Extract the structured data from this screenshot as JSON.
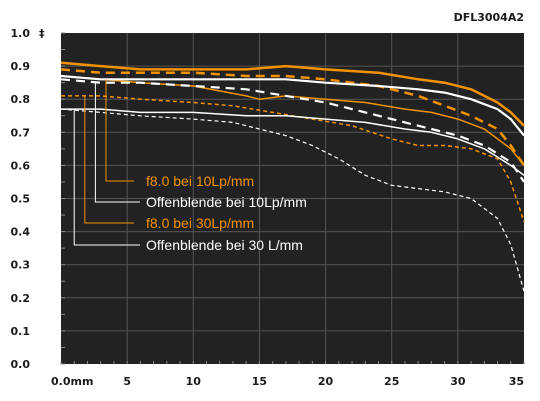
{
  "chart_code": "DFL3004A2",
  "chart_data": {
    "type": "line",
    "title": "",
    "xlabel": "",
    "ylabel": "",
    "xlim": [
      0,
      35
    ],
    "ylim": [
      0,
      1.0
    ],
    "x_ticks": [
      0,
      5,
      10,
      15,
      20,
      25,
      30,
      35
    ],
    "x_tick_labels": [
      "0.0mm",
      "5",
      "10",
      "15",
      "20",
      "25",
      "30",
      "35"
    ],
    "y_ticks": [
      0.0,
      0.1,
      0.2,
      0.3,
      0.4,
      0.5,
      0.6,
      0.7,
      0.8,
      0.9,
      1.0
    ],
    "y_tick_labels": [
      "0.0",
      "0.1",
      "0.2",
      "0.3",
      "0.4",
      "0.5",
      "0.6",
      "0.7",
      "0.8",
      "0.9",
      "1.0"
    ],
    "grid": true,
    "background": "#222222",
    "colors": {
      "orange": "#f39200",
      "white": "#ffffff",
      "grid": "#555555"
    },
    "legend": [
      {
        "label": "f8.0 bei 10Lp/mm",
        "color": "#f39200",
        "anchor_x": 3.4,
        "anchor_y": 0.86
      },
      {
        "label": "Offenblende bei 10Lp/mm",
        "color": "#ffffff",
        "anchor_x": 2.6,
        "anchor_y": 0.85
      },
      {
        "label": "f8.0 bei 30Lp/mm",
        "color": "#f39200",
        "anchor_x": 1.8,
        "anchor_y": 0.81
      },
      {
        "label": "Offenblende bei 30 L/mm",
        "color": "#ffffff",
        "anchor_x": 1.0,
        "anchor_y": 0.77
      }
    ],
    "series": [
      {
        "color": "#f39200",
        "style": "solid",
        "width": 2.5,
        "x": [
          0,
          3,
          6,
          10,
          14,
          17,
          20,
          24,
          27,
          29,
          31,
          33,
          34,
          35
        ],
        "y": [
          0.91,
          0.9,
          0.89,
          0.89,
          0.89,
          0.9,
          0.89,
          0.88,
          0.86,
          0.85,
          0.83,
          0.79,
          0.76,
          0.72
        ]
      },
      {
        "color": "#f39200",
        "style": "dashed",
        "width": 2.5,
        "x": [
          0,
          3,
          6,
          10,
          14,
          17,
          20,
          24,
          27,
          29,
          31,
          33,
          34,
          35
        ],
        "y": [
          0.89,
          0.88,
          0.88,
          0.88,
          0.87,
          0.87,
          0.86,
          0.84,
          0.81,
          0.78,
          0.75,
          0.71,
          0.66,
          0.6
        ]
      },
      {
        "color": "#f39200",
        "style": "solid",
        "width": 1.5,
        "x": [
          0,
          3,
          6,
          10,
          14,
          15,
          17,
          20,
          23,
          26,
          28,
          30,
          32,
          34,
          35
        ],
        "y": [
          0.87,
          0.86,
          0.85,
          0.84,
          0.81,
          0.8,
          0.81,
          0.8,
          0.79,
          0.77,
          0.76,
          0.74,
          0.71,
          0.65,
          0.6
        ]
      },
      {
        "color": "#f39200",
        "style": "dashed",
        "width": 1.5,
        "x": [
          0,
          3,
          6,
          10,
          13,
          16,
          19,
          22,
          25,
          27,
          29,
          31,
          33,
          34,
          35
        ],
        "y": [
          0.81,
          0.81,
          0.8,
          0.79,
          0.78,
          0.76,
          0.74,
          0.72,
          0.68,
          0.66,
          0.66,
          0.65,
          0.62,
          0.55,
          0.43
        ]
      },
      {
        "color": "#ffffff",
        "style": "solid",
        "width": 2.2,
        "x": [
          0,
          3,
          6,
          10,
          14,
          17,
          20,
          24,
          27,
          29,
          31,
          33,
          34,
          35
        ],
        "y": [
          0.87,
          0.86,
          0.86,
          0.86,
          0.86,
          0.86,
          0.85,
          0.84,
          0.83,
          0.82,
          0.8,
          0.77,
          0.74,
          0.69
        ]
      },
      {
        "color": "#ffffff",
        "style": "dashed",
        "width": 2.2,
        "x": [
          0,
          3,
          6,
          10,
          14,
          17,
          20,
          23,
          26,
          28,
          30,
          32,
          34,
          35
        ],
        "y": [
          0.86,
          0.85,
          0.85,
          0.84,
          0.83,
          0.81,
          0.79,
          0.76,
          0.73,
          0.71,
          0.69,
          0.66,
          0.61,
          0.55
        ]
      },
      {
        "color": "#ffffff",
        "style": "solid",
        "width": 1.5,
        "x": [
          0,
          3,
          6,
          10,
          14,
          17,
          20,
          23,
          26,
          28,
          30,
          32,
          34,
          35
        ],
        "y": [
          0.77,
          0.77,
          0.76,
          0.76,
          0.75,
          0.75,
          0.74,
          0.73,
          0.71,
          0.7,
          0.68,
          0.65,
          0.6,
          0.57
        ]
      },
      {
        "color": "#ffffff",
        "style": "dashed",
        "width": 1.2,
        "x": [
          0,
          3,
          6,
          10,
          13,
          15,
          17,
          19,
          21,
          23,
          25,
          27,
          29,
          31,
          33,
          34,
          35
        ],
        "y": [
          0.77,
          0.76,
          0.75,
          0.74,
          0.73,
          0.71,
          0.69,
          0.66,
          0.62,
          0.57,
          0.54,
          0.53,
          0.52,
          0.5,
          0.44,
          0.36,
          0.22
        ]
      }
    ]
  }
}
